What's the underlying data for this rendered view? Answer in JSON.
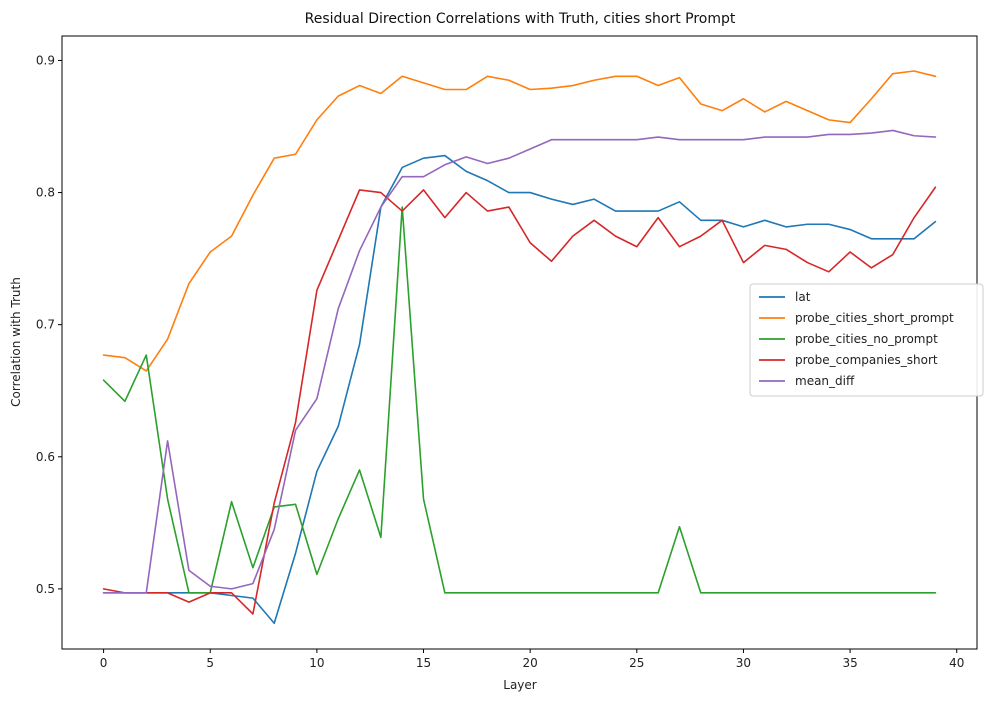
{
  "chart_data": {
    "type": "line",
    "title": "Residual Direction Correlations with Truth, cities short Prompt",
    "xlabel": "Layer",
    "ylabel": "Correlation with Truth",
    "xlim": [
      -1.95,
      40.95
    ],
    "ylim": [
      0.4545,
      0.9185
    ],
    "xticks": [
      0,
      5,
      10,
      15,
      20,
      25,
      30,
      35,
      40
    ],
    "yticks": [
      0.5,
      0.6,
      0.7,
      0.8,
      0.9
    ],
    "ytick_labels": [
      "0.5",
      "0.6",
      "0.7",
      "0.8",
      "0.9"
    ],
    "grid": false,
    "legend_position": "center-right",
    "x": [
      0,
      1,
      2,
      3,
      4,
      5,
      6,
      7,
      8,
      9,
      10,
      11,
      12,
      13,
      14,
      15,
      16,
      17,
      18,
      19,
      20,
      21,
      22,
      23,
      24,
      25,
      26,
      27,
      28,
      29,
      30,
      31,
      32,
      33,
      34,
      35,
      36,
      37,
      38,
      39
    ],
    "series": [
      {
        "name": "lat",
        "color": "#1f77b4",
        "values": [
          0.497,
          0.497,
          0.497,
          0.497,
          0.497,
          0.497,
          0.495,
          0.493,
          0.474,
          0.527,
          0.589,
          0.623,
          0.685,
          0.789,
          0.819,
          0.826,
          0.828,
          0.816,
          0.809,
          0.8,
          0.8,
          0.795,
          0.791,
          0.795,
          0.786,
          0.786,
          0.786,
          0.793,
          0.779,
          0.779,
          0.774,
          0.779,
          0.774,
          0.776,
          0.776,
          0.772,
          0.765,
          0.765,
          0.765,
          0.778
        ]
      },
      {
        "name": "probe_cities_short_prompt",
        "color": "#ff7f0e",
        "values": [
          0.677,
          0.675,
          0.665,
          0.689,
          0.731,
          0.755,
          0.767,
          0.798,
          0.826,
          0.829,
          0.855,
          0.873,
          0.881,
          0.875,
          0.888,
          0.883,
          0.878,
          0.878,
          0.888,
          0.885,
          0.878,
          0.879,
          0.881,
          0.885,
          0.888,
          0.888,
          0.881,
          0.887,
          0.867,
          0.862,
          0.871,
          0.861,
          0.869,
          0.862,
          0.855,
          0.853,
          0.871,
          0.89,
          0.892,
          0.888
        ]
      },
      {
        "name": "probe_cities_no_prompt",
        "color": "#2ca02c",
        "values": [
          0.658,
          0.642,
          0.677,
          0.568,
          0.497,
          0.497,
          0.566,
          0.516,
          0.562,
          0.564,
          0.511,
          0.553,
          0.59,
          0.539,
          0.789,
          0.568,
          0.497,
          0.497,
          0.497,
          0.497,
          0.497,
          0.497,
          0.497,
          0.497,
          0.497,
          0.497,
          0.497,
          0.547,
          0.497,
          0.497,
          0.497,
          0.497,
          0.497,
          0.497,
          0.497,
          0.497,
          0.497,
          0.497,
          0.497,
          0.497
        ]
      },
      {
        "name": "probe_companies_short",
        "color": "#d62728",
        "values": [
          0.5,
          0.497,
          0.497,
          0.497,
          0.49,
          0.497,
          0.497,
          0.481,
          0.565,
          0.626,
          0.726,
          0.764,
          0.802,
          0.8,
          0.786,
          0.802,
          0.781,
          0.8,
          0.786,
          0.789,
          0.762,
          0.748,
          0.767,
          0.779,
          0.767,
          0.759,
          0.781,
          0.759,
          0.767,
          0.779,
          0.747,
          0.76,
          0.757,
          0.747,
          0.74,
          0.755,
          0.743,
          0.753,
          0.781,
          0.804
        ]
      },
      {
        "name": "mean_diff",
        "color": "#9467bd",
        "values": [
          0.497,
          0.497,
          0.497,
          0.612,
          0.514,
          0.502,
          0.5,
          0.504,
          0.545,
          0.62,
          0.644,
          0.712,
          0.756,
          0.789,
          0.812,
          0.812,
          0.821,
          0.827,
          0.822,
          0.826,
          0.833,
          0.84,
          0.84,
          0.84,
          0.84,
          0.84,
          0.842,
          0.84,
          0.84,
          0.84,
          0.84,
          0.842,
          0.842,
          0.842,
          0.844,
          0.844,
          0.845,
          0.847,
          0.843,
          0.842
        ]
      }
    ]
  }
}
